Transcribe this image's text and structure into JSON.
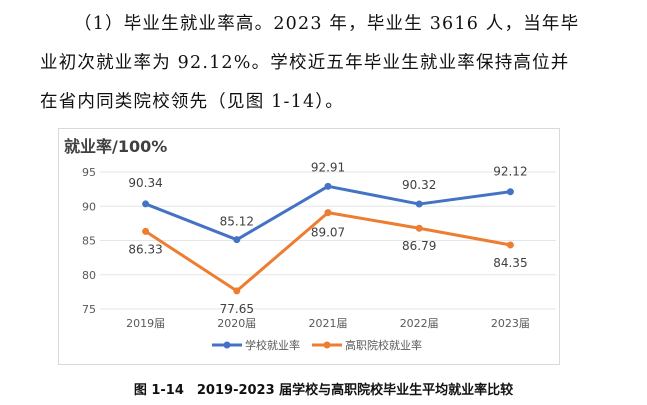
{
  "text": {
    "line1": "（1）毕业生就业率高。2023 年，毕业生 3616 人，当年毕",
    "line2": "业初次就业率为 92.12%。学校近五年毕业生就业率保持高位并",
    "line3": "在省内同类院校领先（见图 1-14）。"
  },
  "chart_data": {
    "type": "line",
    "title": "就业率/100%",
    "categories": [
      "2019届",
      "2020届",
      "2021届",
      "2022届",
      "2023届"
    ],
    "ylim": [
      75,
      95
    ],
    "yticks": [
      75,
      80,
      85,
      90,
      95
    ],
    "grid": true,
    "legend_position": "bottom",
    "series": [
      {
        "name": "学校就业率",
        "color": "#4472C4",
        "values": [
          90.34,
          85.12,
          92.91,
          90.32,
          92.12
        ],
        "labels": [
          "90.34",
          "85.12",
          "92.91",
          "90.32",
          "92.12"
        ]
      },
      {
        "name": "高职院校就业率",
        "color": "#ED7D31",
        "values": [
          86.33,
          77.65,
          89.07,
          86.79,
          84.35
        ],
        "labels": [
          "86.33",
          "77.65",
          "89.07",
          "86.79",
          "84.35"
        ]
      }
    ]
  },
  "caption": "图 1-14　2019-2023 届学校与高职院校毕业生平均就业率比较"
}
